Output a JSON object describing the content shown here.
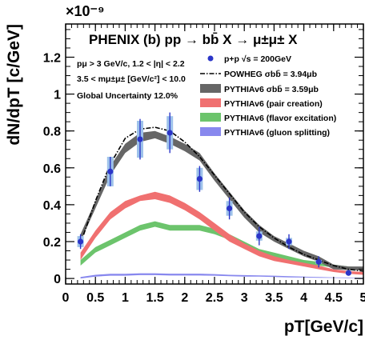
{
  "chart_data": {
    "type": "line",
    "title": "PHENIX (b) pp → bb̄ X → μ±μ± X",
    "xlabel": "pT[GeV/c]",
    "ylabel": "dN/dpT [c/GeV]",
    "y_multiplier": "×10⁻⁹",
    "xlim": [
      0,
      5
    ],
    "ylim": [
      -0.03,
      1.38
    ],
    "x_ticks": [
      "0",
      "0.5",
      "1",
      "1.5",
      "2",
      "2.5",
      "3",
      "3.5",
      "4",
      "4.5",
      "5"
    ],
    "y_ticks": [
      "0",
      "0.2",
      "0.4",
      "0.6",
      "0.8",
      "1",
      "1.2"
    ],
    "cuts": [
      "pμ > 3 GeV/c, 1.2 < |η| < 2.2",
      "3.5 < mμ±μ± [GeV/c²] < 10.0",
      "Global Uncertainty 12.0%"
    ],
    "legend": {
      "data": "p+p √s = 200GeV",
      "powheg": "POWHEG  σbb̄ = 3.94μb",
      "pythia": "PYTHIAv6  σbb̄ = 3.59μb",
      "pair": "PYTHIAv6 (pair creation)",
      "flavor": "PYTHIAv6 (flavor excitation)",
      "gluon": "PYTHIAv6 (gluon splitting)"
    },
    "colors": {
      "data": "#2b35c8",
      "data_syst": "#9ec2ea",
      "pythia": "#666666",
      "pair": "#f07070",
      "flavor": "#6cc46c",
      "gluon": "#8888ee"
    },
    "data_points": [
      {
        "x": 0.25,
        "y": 0.2,
        "stat": 0.04,
        "syst": 0.03
      },
      {
        "x": 0.75,
        "y": 0.58,
        "stat": 0.08,
        "syst": 0.08
      },
      {
        "x": 1.25,
        "y": 0.755,
        "stat": 0.11,
        "syst": 0.1
      },
      {
        "x": 1.75,
        "y": 0.79,
        "stat": 0.11,
        "syst": 0.09
      },
      {
        "x": 2.25,
        "y": 0.54,
        "stat": 0.07,
        "syst": 0.06
      },
      {
        "x": 2.75,
        "y": 0.38,
        "stat": 0.06,
        "syst": 0.04
      },
      {
        "x": 3.25,
        "y": 0.23,
        "stat": 0.05,
        "syst": 0.025
      },
      {
        "x": 3.75,
        "y": 0.2,
        "stat": 0.04,
        "syst": 0.02
      },
      {
        "x": 4.25,
        "y": 0.09,
        "stat": 0.03,
        "syst": 0.01
      },
      {
        "x": 4.75,
        "y": 0.03,
        "stat": 0.015,
        "syst": 0.005
      }
    ],
    "pythia_band": {
      "x": [
        0.25,
        0.5,
        0.75,
        1.0,
        1.25,
        1.5,
        1.75,
        2.0,
        2.25,
        2.5,
        2.75,
        3.0,
        3.25,
        3.5,
        3.75,
        4.0,
        4.25,
        4.5,
        4.75,
        5.0
      ],
      "low": [
        0.2,
        0.38,
        0.56,
        0.68,
        0.74,
        0.76,
        0.73,
        0.69,
        0.64,
        0.53,
        0.43,
        0.33,
        0.25,
        0.2,
        0.16,
        0.12,
        0.09,
        0.05,
        0.045,
        0.045
      ],
      "high": [
        0.24,
        0.42,
        0.61,
        0.73,
        0.79,
        0.8,
        0.77,
        0.73,
        0.68,
        0.57,
        0.47,
        0.37,
        0.29,
        0.23,
        0.19,
        0.15,
        0.12,
        0.075,
        0.065,
        0.065
      ]
    },
    "powheg_curve": {
      "x": [
        0.25,
        0.5,
        0.75,
        1.0,
        1.25,
        1.5,
        1.75,
        2.0,
        2.25,
        2.5,
        2.75,
        3.0,
        3.25,
        3.5,
        3.75,
        4.0,
        4.25,
        4.5,
        4.75,
        5.0
      ],
      "y": [
        0.19,
        0.42,
        0.62,
        0.76,
        0.81,
        0.82,
        0.8,
        0.74,
        0.66,
        0.56,
        0.46,
        0.36,
        0.28,
        0.22,
        0.17,
        0.13,
        0.1,
        0.07,
        0.05,
        0.04
      ]
    },
    "pair_band": {
      "x": [
        0.25,
        0.5,
        0.75,
        1.0,
        1.25,
        1.5,
        1.75,
        2.0,
        2.25,
        2.5,
        2.75,
        3.0,
        3.25,
        3.5,
        3.75,
        4.0,
        4.25,
        4.5,
        4.75,
        5.0
      ],
      "low": [
        0.1,
        0.22,
        0.32,
        0.38,
        0.42,
        0.43,
        0.41,
        0.37,
        0.32,
        0.26,
        0.2,
        0.16,
        0.12,
        0.095,
        0.08,
        0.065,
        0.05,
        0.035,
        0.025,
        0.02
      ],
      "high": [
        0.14,
        0.26,
        0.36,
        0.42,
        0.45,
        0.47,
        0.45,
        0.41,
        0.36,
        0.3,
        0.24,
        0.19,
        0.15,
        0.12,
        0.1,
        0.085,
        0.07,
        0.05,
        0.04,
        0.035
      ]
    },
    "flavor_band": {
      "x": [
        0.25,
        0.5,
        0.75,
        1.0,
        1.25,
        1.5,
        1.75,
        2.0,
        2.25,
        2.5,
        2.75,
        3.0,
        3.25,
        3.5,
        3.75,
        4.0,
        4.25,
        4.5,
        4.75,
        5.0
      ],
      "low": [
        0.07,
        0.14,
        0.18,
        0.22,
        0.26,
        0.28,
        0.26,
        0.26,
        0.26,
        0.24,
        0.21,
        0.17,
        0.13,
        0.11,
        0.09,
        0.08,
        0.07,
        0.06,
        0.05,
        0.05
      ],
      "high": [
        0.1,
        0.17,
        0.21,
        0.25,
        0.29,
        0.31,
        0.29,
        0.29,
        0.29,
        0.27,
        0.24,
        0.2,
        0.16,
        0.14,
        0.12,
        0.1,
        0.09,
        0.075,
        0.065,
        0.06
      ]
    },
    "gluon_band": {
      "x": [
        0.25,
        0.5,
        0.75,
        1.0,
        1.25,
        1.5,
        1.75,
        2.0,
        2.25,
        2.5,
        2.75,
        3.0,
        3.25,
        3.5,
        3.75,
        4.0,
        4.25,
        4.5,
        4.75,
        5.0
      ],
      "low": [
        0.0,
        0.01,
        0.015,
        0.015,
        0.018,
        0.018,
        0.016,
        0.016,
        0.016,
        0.015,
        0.012,
        0.01,
        0.01,
        0.008,
        0.006,
        0.005,
        0.004,
        0.003,
        0.002,
        0.002
      ],
      "high": [
        0.008,
        0.02,
        0.025,
        0.025,
        0.028,
        0.028,
        0.026,
        0.026,
        0.026,
        0.024,
        0.02,
        0.018,
        0.017,
        0.015,
        0.012,
        0.01,
        0.008,
        0.006,
        0.005,
        0.004
      ]
    }
  }
}
